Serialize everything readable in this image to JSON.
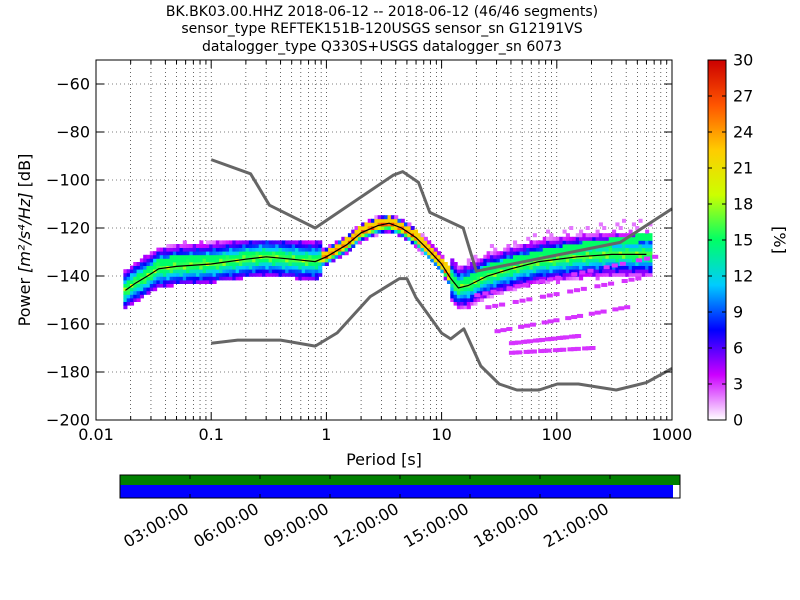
{
  "title_lines": [
    "BK.BK03.00.HHZ   2018-06-12 -- 2018-06-12  (46/46 segments)",
    "sensor_type REFTEK151B-120USGS sensor_sn G12191VS",
    "datalogger_type Q330S+USGS datalogger_sn 6073"
  ],
  "chart_data": {
    "type": "heatmap",
    "x_scale": "log",
    "xlim": [
      0.01,
      1000
    ],
    "ylim": [
      -200,
      -50
    ],
    "xlabel": "Period [s]",
    "ylabel_prefix": "Power ",
    "ylabel_units": "[m²/s⁴/Hz]",
    "ylabel_suffix": " [dB]",
    "x_ticks": [
      {
        "value": 0.01,
        "label": "0.01"
      },
      {
        "value": 0.1,
        "label": "0.1"
      },
      {
        "value": 1,
        "label": "1"
      },
      {
        "value": 10,
        "label": "10"
      },
      {
        "value": 100,
        "label": "100"
      },
      {
        "value": 1000,
        "label": "1000"
      }
    ],
    "y_ticks": [
      {
        "value": -60,
        "label": "−60"
      },
      {
        "value": -80,
        "label": "−80"
      },
      {
        "value": -100,
        "label": "−100"
      },
      {
        "value": -120,
        "label": "−120"
      },
      {
        "value": -140,
        "label": "−140"
      },
      {
        "value": -160,
        "label": "−160"
      },
      {
        "value": -180,
        "label": "−180"
      },
      {
        "value": -200,
        "label": "−200"
      }
    ],
    "grid": true,
    "nhnm": [
      [
        0.1,
        -91.5
      ],
      [
        0.22,
        -97.4
      ],
      [
        0.32,
        -110.5
      ],
      [
        0.8,
        -120
      ],
      [
        3.8,
        -98
      ],
      [
        4.6,
        -96.5
      ],
      [
        6.3,
        -101
      ],
      [
        7.9,
        -113.5
      ],
      [
        15.4,
        -120
      ],
      [
        20,
        -138
      ],
      [
        354.8,
        -126
      ],
      [
        1000,
        -112
      ]
    ],
    "nlnm": [
      [
        0.1,
        -168
      ],
      [
        0.17,
        -166.7
      ],
      [
        0.4,
        -166.7
      ],
      [
        0.8,
        -169.2
      ],
      [
        1.24,
        -163.7
      ],
      [
        2.4,
        -148.6
      ],
      [
        4.3,
        -141.1
      ],
      [
        5,
        -141.1
      ],
      [
        6,
        -149
      ],
      [
        10,
        -163.8
      ],
      [
        12,
        -166.2
      ],
      [
        15.6,
        -162
      ],
      [
        21.9,
        -177.5
      ],
      [
        31.6,
        -185
      ],
      [
        45,
        -187.5
      ],
      [
        70,
        -187.5
      ],
      [
        101,
        -185
      ],
      [
        154,
        -185
      ],
      [
        328,
        -187.5
      ],
      [
        600,
        -184.4
      ],
      [
        1000,
        -178.5
      ]
    ],
    "mode_curve": [
      [
        0.018,
        -146
      ],
      [
        0.022,
        -143
      ],
      [
        0.028,
        -140
      ],
      [
        0.035,
        -137
      ],
      [
        0.05,
        -136
      ],
      [
        0.1,
        -135
      ],
      [
        0.2,
        -133
      ],
      [
        0.3,
        -132
      ],
      [
        0.5,
        -133
      ],
      [
        0.8,
        -134
      ],
      [
        1.0,
        -132
      ],
      [
        1.5,
        -127
      ],
      [
        2.0,
        -122
      ],
      [
        2.8,
        -119
      ],
      [
        3.5,
        -118
      ],
      [
        4.5,
        -120
      ],
      [
        6.0,
        -124
      ],
      [
        8.0,
        -130
      ],
      [
        10.0,
        -135
      ],
      [
        12.0,
        -141
      ],
      [
        14.0,
        -145
      ],
      [
        17.0,
        -144
      ],
      [
        25.0,
        -140
      ],
      [
        40.0,
        -137
      ],
      [
        70.0,
        -134
      ],
      [
        150.0,
        -132
      ],
      [
        300.0,
        -131
      ],
      [
        600.0,
        -131
      ]
    ],
    "band_curve": [
      [
        0.018,
        -145
      ],
      [
        0.025,
        -140
      ],
      [
        0.035,
        -135
      ],
      [
        0.05,
        -133
      ],
      [
        0.1,
        -133
      ],
      [
        0.2,
        -132
      ],
      [
        0.4,
        -132
      ],
      [
        0.8,
        -133
      ],
      [
        1.0,
        -131
      ],
      [
        1.5,
        -126
      ],
      [
        2.0,
        -121
      ],
      [
        2.8,
        -118
      ],
      [
        3.5,
        -117
      ],
      [
        4.5,
        -119
      ],
      [
        6.0,
        -123
      ],
      [
        8.0,
        -129
      ],
      [
        10.0,
        -134
      ],
      [
        12.0,
        -139
      ],
      [
        14.0,
        -143
      ],
      [
        17.0,
        -142
      ],
      [
        25.0,
        -137
      ],
      [
        40.0,
        -134
      ],
      [
        70.0,
        -131
      ],
      [
        150.0,
        -128
      ],
      [
        300.0,
        -126
      ],
      [
        600.0,
        -124
      ]
    ],
    "outlier_bands": [
      {
        "from": 20,
        "to": 700,
        "start_db": -148,
        "end_db": -132
      },
      {
        "from": 25,
        "to": 500,
        "start_db": -153,
        "end_db": -141
      },
      {
        "from": 30,
        "to": 400,
        "start_db": -163,
        "end_db": -153
      },
      {
        "from": 40,
        "to": 150,
        "start_db": -168,
        "end_db": -165
      },
      {
        "from": 40,
        "to": 200,
        "start_db": -172,
        "end_db": -170
      }
    ],
    "colorbar": {
      "label": "[%]",
      "range": [
        0,
        30
      ],
      "ticks": [
        {
          "value": 0,
          "label": "0"
        },
        {
          "value": 3,
          "label": "3"
        },
        {
          "value": 6,
          "label": "6"
        },
        {
          "value": 9,
          "label": "9"
        },
        {
          "value": 12,
          "label": "12"
        },
        {
          "value": 15,
          "label": "15"
        },
        {
          "value": 18,
          "label": "18"
        },
        {
          "value": 21,
          "label": "21"
        },
        {
          "value": 24,
          "label": "24"
        },
        {
          "value": 27,
          "label": "27"
        },
        {
          "value": 30,
          "label": "30"
        }
      ],
      "stops": [
        "#ffffff",
        "#cc00ff",
        "#0000ff",
        "#00ccff",
        "#00ff66",
        "#ccff00",
        "#ffcc00",
        "#ff5500",
        "#cc0000"
      ]
    },
    "curve_color": "#666666"
  },
  "time_coverage": {
    "range_hours": [
      0,
      24
    ],
    "data_coverage_hours": [
      0,
      23.7
    ],
    "coverage_color": "#0000ff",
    "segment_color": "#008000",
    "ticks": [
      {
        "hour": 3,
        "label": "03:00:00"
      },
      {
        "hour": 6,
        "label": "06:00:00"
      },
      {
        "hour": 9,
        "label": "09:00:00"
      },
      {
        "hour": 12,
        "label": "12:00:00"
      },
      {
        "hour": 15,
        "label": "15:00:00"
      },
      {
        "hour": 18,
        "label": "18:00:00"
      },
      {
        "hour": 21,
        "label": "21:00:00"
      }
    ]
  }
}
